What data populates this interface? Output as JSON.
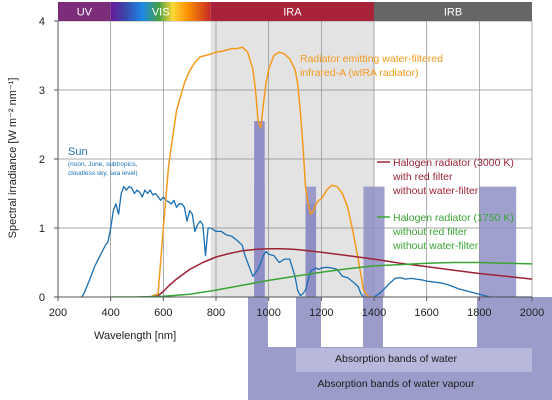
{
  "chart_data": {
    "type": "line",
    "title": "",
    "xlabel": "Wavelength [nm]",
    "ylabel": "Spectral irradiance [W m⁻² nm⁻¹]",
    "xlim": [
      200,
      2000
    ],
    "ylim": [
      0,
      4
    ],
    "xticks": [
      200,
      400,
      600,
      800,
      1000,
      1200,
      1400,
      1600,
      1800,
      2000
    ],
    "yticks": [
      0,
      1,
      2,
      3,
      4
    ],
    "grid": true,
    "regions": [
      {
        "label": "UV",
        "from": 300,
        "to": 400,
        "color": "#7b2d7a"
      },
      {
        "label": "VIS",
        "from": 400,
        "to": 780,
        "color": "spectrum"
      },
      {
        "label": "IRA",
        "from": 780,
        "to": 1400,
        "color": "#a8233a"
      },
      {
        "label": "IRB",
        "from": 1400,
        "to": 2000,
        "color": "#666666"
      }
    ],
    "ira_shading": {
      "from": 780,
      "to": 1400,
      "color": "#e3e3e3"
    },
    "water_absorption_bands": [
      [
        945,
        985
      ],
      [
        1140,
        1180
      ],
      [
        1360,
        1440
      ],
      [
        1800,
        1940
      ]
    ],
    "absorption_labels": {
      "water": "Absorption bands of water",
      "vapour": "Absorption bands of water vapour"
    },
    "series": [
      {
        "name": "Sun",
        "color": "#1a6fb3",
        "note_lines": [
          "(noon, June, subtropics,",
          "cloudless sky, sea level)"
        ],
        "x": [
          290,
          300,
          320,
          340,
          360,
          380,
          390,
          400,
          410,
          420,
          430,
          440,
          450,
          460,
          470,
          480,
          490,
          500,
          510,
          520,
          530,
          540,
          550,
          560,
          570,
          580,
          590,
          600,
          610,
          620,
          630,
          640,
          650,
          660,
          670,
          680,
          690,
          700,
          710,
          720,
          730,
          740,
          750,
          760,
          770,
          780,
          800,
          820,
          840,
          860,
          880,
          900,
          910,
          920,
          930,
          940,
          950,
          960,
          970,
          980,
          990,
          1000,
          1020,
          1040,
          1060,
          1080,
          1100,
          1110,
          1120,
          1130,
          1140,
          1150,
          1160,
          1170,
          1180,
          1190,
          1200,
          1220,
          1240,
          1260,
          1280,
          1300,
          1320,
          1340,
          1350,
          1360,
          1370,
          1380,
          1400,
          1420,
          1440,
          1460,
          1480,
          1500,
          1520,
          1540,
          1560,
          1580,
          1600,
          1620,
          1640,
          1660,
          1680,
          1700,
          1720,
          1740,
          1760,
          1780,
          1800,
          1820,
          1840,
          1860,
          1880,
          1900,
          1920,
          1940,
          1960,
          1980,
          2000
        ],
        "y": [
          0.0,
          0.06,
          0.25,
          0.45,
          0.6,
          0.75,
          0.8,
          1.0,
          1.25,
          1.35,
          1.2,
          1.5,
          1.6,
          1.55,
          1.6,
          1.58,
          1.5,
          1.55,
          1.52,
          1.45,
          1.55,
          1.5,
          1.55,
          1.48,
          1.5,
          1.45,
          1.4,
          1.45,
          1.4,
          1.38,
          1.35,
          1.4,
          1.3,
          1.35,
          1.35,
          1.3,
          1.1,
          1.25,
          1.2,
          0.95,
          1.05,
          1.1,
          1.05,
          0.6,
          1.0,
          1.0,
          0.95,
          0.95,
          0.9,
          0.88,
          0.82,
          0.75,
          0.6,
          0.5,
          0.4,
          0.3,
          0.35,
          0.4,
          0.5,
          0.6,
          0.66,
          0.62,
          0.6,
          0.5,
          0.55,
          0.55,
          0.3,
          0.1,
          0.02,
          0.05,
          0.1,
          0.25,
          0.38,
          0.4,
          0.42,
          0.4,
          0.42,
          0.43,
          0.42,
          0.4,
          0.3,
          0.28,
          0.22,
          0.15,
          0.05,
          0.0,
          0.0,
          0.0,
          0.0,
          0.05,
          0.12,
          0.2,
          0.27,
          0.28,
          0.26,
          0.27,
          0.26,
          0.25,
          0.23,
          0.22,
          0.21,
          0.2,
          0.18,
          0.15,
          0.12,
          0.1,
          0.08,
          0.06,
          0.04,
          0.02,
          0.0,
          0.0,
          0.0,
          0.0,
          0.0,
          0.0,
          0.0,
          0.0,
          0.0
        ]
      },
      {
        "name": "Radiator emitting water-filtered infrared-A (wIRA radiator)",
        "label_lines": [
          "Radiator emitting water-filtered",
          "infrared-A (wIRA radiator)"
        ],
        "color": "#f39a1e",
        "x": [
          500,
          550,
          580,
          600,
          620,
          650,
          680,
          700,
          720,
          740,
          760,
          780,
          800,
          820,
          840,
          860,
          880,
          900,
          920,
          940,
          950,
          960,
          970,
          980,
          990,
          1000,
          1020,
          1040,
          1060,
          1080,
          1100,
          1110,
          1120,
          1130,
          1140,
          1150,
          1160,
          1170,
          1180,
          1190,
          1200,
          1220,
          1240,
          1260,
          1280,
          1300,
          1320,
          1340,
          1360,
          1380,
          1400
        ],
        "y": [
          0.0,
          0.0,
          0.05,
          1.0,
          1.9,
          2.7,
          3.1,
          3.28,
          3.4,
          3.48,
          3.5,
          3.52,
          3.55,
          3.56,
          3.58,
          3.6,
          3.6,
          3.62,
          3.55,
          3.3,
          3.0,
          2.55,
          2.45,
          2.8,
          3.1,
          3.3,
          3.5,
          3.55,
          3.52,
          3.45,
          3.3,
          3.1,
          2.7,
          2.2,
          1.6,
          1.35,
          1.2,
          1.25,
          1.35,
          1.4,
          1.42,
          1.55,
          1.62,
          1.6,
          1.5,
          1.3,
          0.95,
          0.55,
          0.1,
          0.0,
          0.0
        ]
      },
      {
        "name": "Halogen radiator (3000 K) with red filter without water-filter",
        "label_lines": [
          "Halogen radiator (3000 K)",
          "with red filter",
          "without water-filter"
        ],
        "color": "#9b2335",
        "x": [
          540,
          560,
          580,
          600,
          620,
          650,
          700,
          750,
          800,
          850,
          900,
          950,
          1000,
          1050,
          1100,
          1150,
          1200,
          1300,
          1400,
          1500,
          1600,
          1700,
          1800,
          1900,
          2000
        ],
        "y": [
          0.0,
          0.0,
          0.02,
          0.08,
          0.16,
          0.26,
          0.4,
          0.5,
          0.58,
          0.63,
          0.67,
          0.69,
          0.7,
          0.7,
          0.69,
          0.67,
          0.65,
          0.6,
          0.55,
          0.49,
          0.44,
          0.39,
          0.34,
          0.3,
          0.26
        ]
      },
      {
        "name": "Halogen radiator (1750 K) without red filter without water-filter",
        "label_lines": [
          "Halogen radiator (1750 K)",
          "without red filter",
          "without water-filter"
        ],
        "color": "#3aa535",
        "x": [
          400,
          500,
          600,
          700,
          800,
          900,
          1000,
          1100,
          1200,
          1300,
          1400,
          1500,
          1600,
          1700,
          1800,
          1900,
          2000
        ],
        "y": [
          0.0,
          0.0,
          0.01,
          0.04,
          0.1,
          0.17,
          0.24,
          0.3,
          0.36,
          0.41,
          0.45,
          0.47,
          0.49,
          0.5,
          0.5,
          0.49,
          0.48
        ]
      }
    ]
  }
}
